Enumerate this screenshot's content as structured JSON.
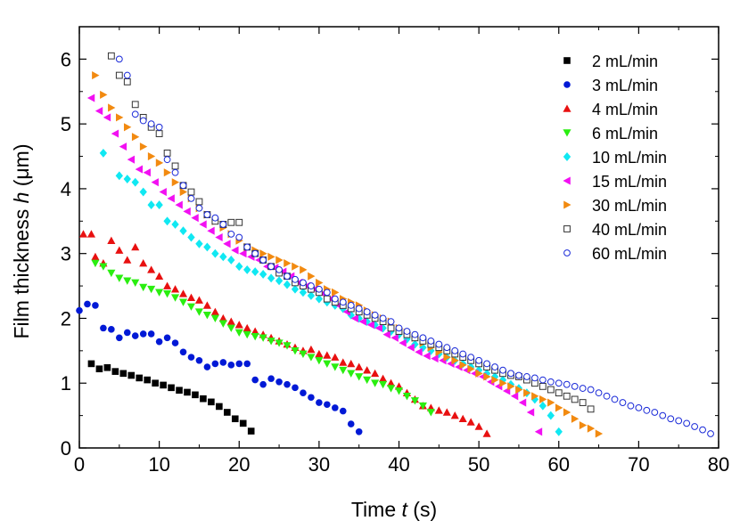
{
  "chart_data": {
    "type": "scatter",
    "xlabel": {
      "prefix": "Time ",
      "var": "t",
      "suffix": " (s)"
    },
    "ylabel": {
      "prefix": "Film thickness ",
      "var": "h",
      "suffix": " (μm)"
    },
    "xlim": [
      0,
      80
    ],
    "ylim": [
      0,
      6.5
    ],
    "xticks": [
      "0",
      "10",
      "20",
      "30",
      "40",
      "50",
      "60",
      "70",
      "80"
    ],
    "yticks": [
      "0",
      "1",
      "2",
      "3",
      "4",
      "5",
      "6"
    ],
    "grid": false,
    "legend_position": "top-right",
    "series": [
      {
        "name": "2 mL/min",
        "marker": "square",
        "filled": true,
        "color": "#000000",
        "x": [
          1.5,
          2.5,
          3.5,
          4.5,
          5.5,
          6.5,
          7.5,
          8.5,
          9.5,
          10.5,
          11.5,
          12.5,
          13.5,
          14.5,
          15.5,
          16.5,
          17.5,
          18.5,
          19.5,
          20.5,
          21.5
        ],
        "y": [
          1.3,
          1.22,
          1.24,
          1.18,
          1.15,
          1.12,
          1.08,
          1.05,
          1.0,
          0.97,
          0.93,
          0.89,
          0.86,
          0.82,
          0.76,
          0.71,
          0.64,
          0.55,
          0.45,
          0.38,
          0.26
        ]
      },
      {
        "name": "3 mL/min",
        "marker": "circle",
        "filled": true,
        "color": "#0019d6",
        "x": [
          0,
          1,
          2,
          3,
          4,
          5,
          6,
          7,
          8,
          9,
          10,
          11,
          12,
          13,
          14,
          15,
          16,
          17,
          18,
          19,
          20,
          21,
          22,
          23,
          24,
          25,
          26,
          27,
          28,
          29,
          30,
          31,
          32,
          33,
          34,
          35
        ],
        "y": [
          2.12,
          2.22,
          2.2,
          1.85,
          1.83,
          1.7,
          1.78,
          1.73,
          1.76,
          1.76,
          1.64,
          1.7,
          1.62,
          1.48,
          1.4,
          1.35,
          1.25,
          1.3,
          1.32,
          1.28,
          1.3,
          1.3,
          1.05,
          0.98,
          1.07,
          1.02,
          0.98,
          0.93,
          0.85,
          0.78,
          0.7,
          0.67,
          0.62,
          0.57,
          0.37,
          0.25
        ]
      },
      {
        "name": "4 mL/min",
        "marker": "triangle-up",
        "filled": true,
        "color": "#e81010",
        "x": [
          0.5,
          1.5,
          2,
          3,
          4,
          5,
          6,
          7,
          8,
          9,
          10,
          11,
          12,
          13,
          14,
          15,
          16,
          17,
          18,
          19,
          20,
          21,
          22,
          23,
          24,
          25,
          26,
          27,
          28,
          29,
          30,
          31,
          32,
          33,
          34,
          35,
          36,
          37,
          38,
          39,
          40,
          41,
          42,
          43,
          44,
          45,
          46,
          47,
          48,
          49,
          50,
          51
        ],
        "y": [
          3.3,
          3.3,
          2.95,
          2.85,
          3.2,
          3.05,
          2.9,
          3.1,
          2.85,
          2.75,
          2.65,
          2.5,
          2.45,
          2.38,
          2.32,
          2.28,
          2.2,
          2.1,
          2.0,
          1.95,
          1.9,
          1.85,
          1.8,
          1.75,
          1.7,
          1.65,
          1.6,
          1.55,
          1.5,
          1.52,
          1.45,
          1.43,
          1.4,
          1.32,
          1.3,
          1.25,
          1.2,
          1.15,
          1.07,
          1.0,
          0.95,
          0.85,
          0.75,
          0.65,
          0.62,
          0.58,
          0.55,
          0.5,
          0.45,
          0.4,
          0.33,
          0.22
        ]
      },
      {
        "name": "6 mL/min",
        "marker": "triangle-down",
        "filled": true,
        "color": "#2aee10",
        "x": [
          2,
          3,
          4,
          5,
          6,
          7,
          8,
          9,
          10,
          11,
          12,
          13,
          14,
          15,
          16,
          17,
          18,
          19,
          20,
          21,
          22,
          23,
          24,
          25,
          26,
          27,
          28,
          29,
          30,
          31,
          32,
          33,
          34,
          35,
          36,
          37,
          38,
          39,
          40,
          41,
          42,
          43,
          44
        ],
        "y": [
          2.85,
          2.8,
          2.7,
          2.62,
          2.58,
          2.55,
          2.48,
          2.45,
          2.4,
          2.38,
          2.32,
          2.25,
          2.18,
          2.1,
          2.05,
          2.0,
          1.92,
          1.85,
          1.78,
          1.75,
          1.72,
          1.7,
          1.65,
          1.62,
          1.58,
          1.5,
          1.45,
          1.4,
          1.35,
          1.3,
          1.25,
          1.2,
          1.15,
          1.1,
          1.05,
          1.0,
          0.98,
          0.92,
          0.88,
          0.8,
          0.73,
          0.65,
          0.55
        ]
      },
      {
        "name": "10 mL/min",
        "marker": "diamond",
        "filled": true,
        "color": "#10e8f2",
        "x": [
          3,
          5,
          6,
          7,
          8,
          9,
          10,
          11,
          12,
          13,
          14,
          15,
          16,
          17,
          18,
          19,
          20,
          21,
          22,
          23,
          24,
          25,
          26,
          27,
          28,
          29,
          30,
          31,
          32,
          33,
          34,
          35,
          36,
          37,
          38,
          39,
          40,
          41,
          42,
          43,
          44,
          45,
          46,
          47,
          48,
          49,
          50,
          51,
          52,
          53,
          54,
          55,
          56,
          57,
          58,
          59,
          60
        ],
        "y": [
          4.55,
          4.2,
          4.15,
          4.1,
          3.95,
          3.75,
          3.75,
          3.5,
          3.45,
          3.35,
          3.25,
          3.15,
          3.1,
          3.0,
          2.95,
          2.9,
          2.8,
          2.75,
          2.72,
          2.68,
          2.62,
          2.58,
          2.52,
          2.45,
          2.4,
          2.35,
          2.3,
          2.25,
          2.2,
          2.15,
          2.05,
          2.0,
          1.95,
          1.9,
          1.85,
          1.8,
          1.75,
          1.68,
          1.6,
          1.55,
          1.5,
          1.45,
          1.4,
          1.35,
          1.3,
          1.25,
          1.2,
          1.15,
          1.1,
          1.05,
          0.98,
          0.92,
          0.85,
          0.75,
          0.65,
          0.5,
          0.25
        ]
      },
      {
        "name": "15 mL/min",
        "marker": "triangle-left",
        "filled": true,
        "color": "#f210f2",
        "x": [
          1.5,
          2.5,
          3.5,
          4.5,
          5.5,
          6.5,
          7.5,
          8.5,
          9.5,
          10.5,
          11.5,
          12.5,
          13.5,
          14.5,
          15.5,
          16.5,
          17.5,
          18.5,
          19.5,
          20.5,
          21.5,
          22.5,
          23.5,
          24.5,
          25.5,
          26.5,
          27.5,
          28.5,
          29.5,
          30.5,
          31.5,
          32.5,
          33.5,
          34.5,
          35.5,
          36.5,
          37.5,
          38.5,
          39.5,
          40.5,
          41.5,
          42.5,
          43.5,
          44.5,
          45.5,
          46.5,
          47.5,
          48.5,
          49.5,
          50.5,
          51.5,
          52.5,
          53.5,
          54.5,
          55.5,
          56.5,
          57.5
        ],
        "y": [
          5.4,
          5.2,
          5.1,
          4.85,
          4.65,
          4.45,
          4.3,
          4.25,
          4.1,
          3.95,
          3.85,
          3.75,
          3.65,
          3.55,
          3.45,
          3.35,
          3.25,
          3.15,
          3.05,
          3.0,
          2.95,
          2.9,
          2.8,
          2.78,
          2.72,
          2.65,
          2.55,
          2.5,
          2.45,
          2.38,
          2.3,
          2.2,
          2.1,
          2.0,
          1.95,
          1.9,
          1.85,
          1.75,
          1.7,
          1.62,
          1.55,
          1.48,
          1.42,
          1.38,
          1.35,
          1.3,
          1.25,
          1.2,
          1.15,
          1.1,
          1.02,
          0.95,
          0.88,
          0.8,
          0.7,
          0.55,
          0.25
        ]
      },
      {
        "name": "30 mL/min",
        "marker": "triangle-right",
        "filled": true,
        "color": "#f28a10",
        "x": [
          2,
          3,
          4,
          5,
          6,
          7,
          8,
          9,
          10,
          11,
          12,
          13,
          14,
          15,
          16,
          17,
          18,
          19,
          20,
          21,
          22,
          23,
          24,
          25,
          26,
          27,
          28,
          29,
          30,
          31,
          32,
          33,
          34,
          35,
          36,
          37,
          38,
          39,
          40,
          41,
          42,
          43,
          44,
          45,
          46,
          47,
          48,
          49,
          50,
          51,
          52,
          53,
          54,
          55,
          56,
          57,
          58,
          59,
          60,
          61,
          62,
          63,
          64,
          65
        ],
        "y": [
          5.75,
          5.45,
          5.25,
          5.1,
          4.95,
          4.8,
          4.65,
          4.5,
          4.4,
          4.25,
          4.1,
          3.95,
          3.85,
          3.7,
          3.6,
          3.5,
          3.4,
          3.3,
          3.2,
          3.1,
          3.05,
          3.0,
          2.95,
          2.9,
          2.85,
          2.8,
          2.75,
          2.65,
          2.55,
          2.45,
          2.4,
          2.3,
          2.25,
          2.2,
          2.12,
          2.05,
          2.0,
          1.95,
          1.85,
          1.78,
          1.7,
          1.62,
          1.55,
          1.48,
          1.4,
          1.35,
          1.28,
          1.22,
          1.15,
          1.1,
          1.05,
          1.0,
          0.95,
          0.9,
          0.85,
          0.8,
          0.75,
          0.7,
          0.62,
          0.55,
          0.45,
          0.35,
          0.3,
          0.22
        ]
      },
      {
        "name": "40 mL/min",
        "marker": "square",
        "filled": false,
        "color": "#333333",
        "x": [
          4,
          5,
          6,
          7,
          8,
          9,
          10,
          11,
          12,
          13,
          14,
          15,
          16,
          17,
          18,
          19,
          20,
          21,
          22,
          23,
          24,
          25,
          26,
          27,
          28,
          29,
          30,
          31,
          32,
          33,
          34,
          35,
          36,
          37,
          38,
          39,
          40,
          41,
          42,
          43,
          44,
          45,
          46,
          47,
          48,
          49,
          50,
          51,
          52,
          53,
          54,
          55,
          56,
          57,
          58,
          59,
          60,
          61,
          62,
          63,
          64
        ],
        "y": [
          6.05,
          5.75,
          5.65,
          5.3,
          5.1,
          4.95,
          4.85,
          4.55,
          4.35,
          4.05,
          3.95,
          3.8,
          3.6,
          3.5,
          3.45,
          3.48,
          3.48,
          3.1,
          3.0,
          2.9,
          2.8,
          2.7,
          2.65,
          2.55,
          2.5,
          2.45,
          2.4,
          2.3,
          2.25,
          2.2,
          2.15,
          2.1,
          2.05,
          2.0,
          1.95,
          1.85,
          1.8,
          1.75,
          1.7,
          1.65,
          1.6,
          1.55,
          1.5,
          1.45,
          1.4,
          1.35,
          1.3,
          1.25,
          1.2,
          1.15,
          1.12,
          1.1,
          1.05,
          1.0,
          0.95,
          0.9,
          0.85,
          0.8,
          0.75,
          0.7,
          0.6
        ]
      },
      {
        "name": "60 mL/min",
        "marker": "circle",
        "filled": false,
        "color": "#1a2ad8",
        "x": [
          5,
          6,
          7,
          8,
          9,
          10,
          11,
          12,
          13,
          14,
          15,
          16,
          17,
          18,
          19,
          20,
          21,
          22,
          23,
          24,
          25,
          26,
          27,
          28,
          29,
          30,
          31,
          32,
          33,
          34,
          35,
          36,
          37,
          38,
          39,
          40,
          41,
          42,
          43,
          44,
          45,
          46,
          47,
          48,
          49,
          50,
          51,
          52,
          53,
          54,
          55,
          56,
          57,
          58,
          59,
          60,
          61,
          62,
          63,
          64,
          65,
          66,
          67,
          68,
          69,
          70,
          71,
          72,
          73,
          74,
          75,
          76,
          77,
          78,
          79
        ],
        "y": [
          6.0,
          5.75,
          5.15,
          5.05,
          5.0,
          4.95,
          4.45,
          4.25,
          4.05,
          3.85,
          3.7,
          3.6,
          3.55,
          3.45,
          3.3,
          3.25,
          3.1,
          3.0,
          2.9,
          2.8,
          2.75,
          2.65,
          2.6,
          2.55,
          2.5,
          2.45,
          2.4,
          2.3,
          2.25,
          2.2,
          2.15,
          2.1,
          2.05,
          2.0,
          1.95,
          1.85,
          1.8,
          1.75,
          1.7,
          1.65,
          1.6,
          1.55,
          1.5,
          1.45,
          1.4,
          1.35,
          1.3,
          1.25,
          1.2,
          1.15,
          1.12,
          1.1,
          1.08,
          1.05,
          1.02,
          1.0,
          0.98,
          0.95,
          0.92,
          0.9,
          0.85,
          0.8,
          0.75,
          0.7,
          0.65,
          0.62,
          0.58,
          0.55,
          0.5,
          0.45,
          0.42,
          0.38,
          0.33,
          0.28,
          0.22
        ]
      }
    ]
  }
}
